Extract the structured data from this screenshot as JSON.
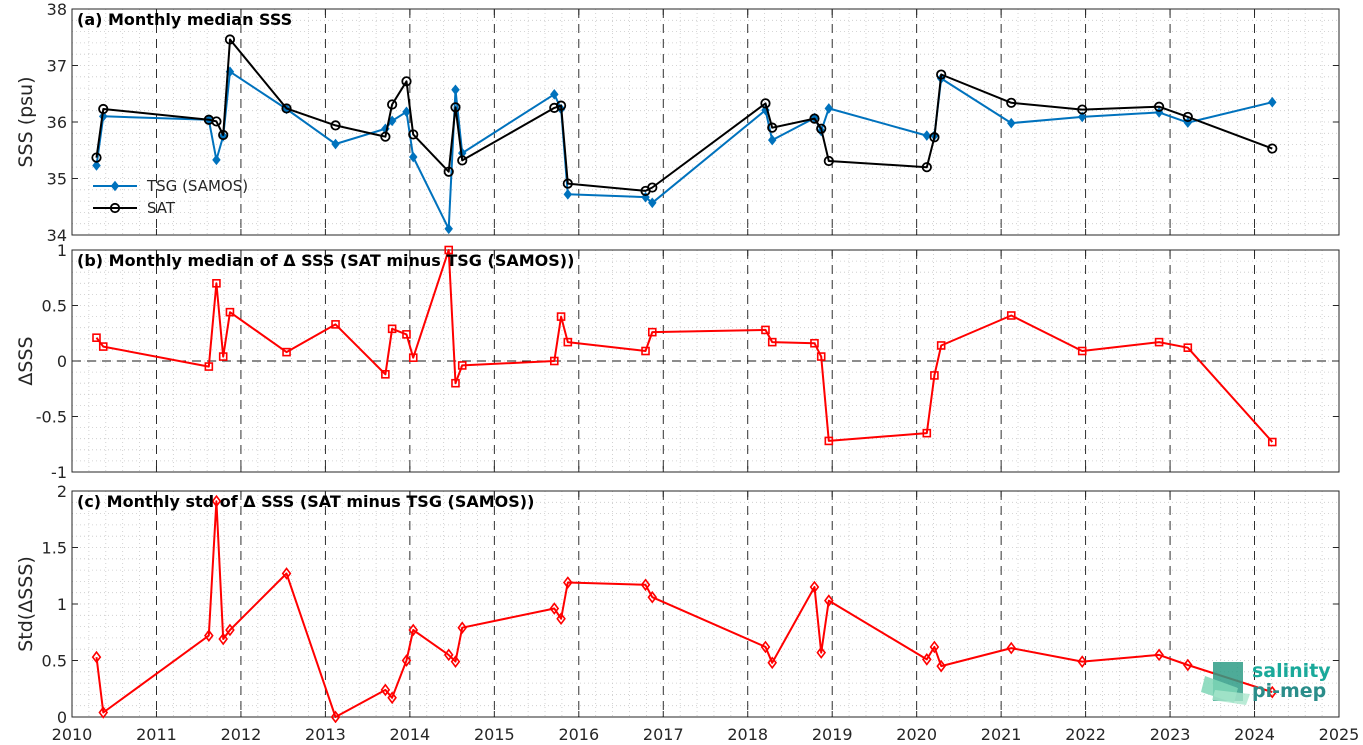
{
  "chart_data": [
    {
      "type": "line",
      "title": "(a) Monthly median SSS",
      "ylabel": "SSS (psu)",
      "ylim": [
        34,
        38
      ],
      "yticks": [
        34,
        35,
        36,
        37,
        38
      ],
      "xlim": [
        2010,
        2025
      ],
      "xticks": [
        2010,
        2011,
        2012,
        2013,
        2014,
        2015,
        2016,
        2017,
        2018,
        2019,
        2020,
        2021,
        2022,
        2023,
        2024,
        2025
      ],
      "grid": true,
      "legend_position": "bottom-left",
      "series": [
        {
          "name": "TSG (SAMOS)",
          "color": "#0072bd",
          "marker": "diamond",
          "x": [
            2010.29,
            2010.37,
            2011.62,
            2011.71,
            2011.79,
            2011.87,
            2012.54,
            2013.12,
            2013.71,
            2013.79,
            2013.96,
            2014.04,
            2014.46,
            2014.54,
            2014.62,
            2015.71,
            2015.79,
            2015.87,
            2016.79,
            2016.87,
            2018.21,
            2018.29,
            2018.79,
            2018.87,
            2018.96,
            2020.12,
            2020.21,
            2020.29,
            2021.12,
            2021.96,
            2022.87,
            2023.21,
            2024.21
          ],
          "y": [
            35.23,
            36.1,
            36.04,
            35.33,
            35.75,
            36.89,
            36.23,
            35.61,
            35.88,
            36.02,
            36.18,
            35.38,
            34.11,
            36.57,
            35.45,
            36.49,
            36.23,
            34.72,
            34.67,
            34.57,
            36.21,
            35.68,
            36.07,
            35.84,
            36.24,
            35.76,
            35.76,
            36.77,
            35.98,
            36.09,
            36.17,
            35.99,
            36.35
          ]
        },
        {
          "name": "SAT",
          "color": "#000000",
          "marker": "circle",
          "x": [
            2010.29,
            2010.37,
            2011.62,
            2011.71,
            2011.79,
            2011.87,
            2012.54,
            2013.12,
            2013.71,
            2013.79,
            2013.96,
            2014.04,
            2014.46,
            2014.54,
            2014.62,
            2015.71,
            2015.79,
            2015.87,
            2016.79,
            2016.87,
            2018.21,
            2018.29,
            2018.79,
            2018.87,
            2018.96,
            2020.12,
            2020.21,
            2020.29,
            2021.12,
            2021.96,
            2022.87,
            2023.21,
            2024.21
          ],
          "y": [
            35.37,
            36.23,
            36.04,
            36.01,
            35.77,
            37.46,
            36.24,
            35.94,
            35.74,
            36.31,
            36.72,
            35.78,
            35.12,
            36.26,
            35.32,
            36.25,
            36.29,
            34.91,
            34.78,
            34.84,
            36.33,
            35.9,
            36.06,
            35.88,
            35.31,
            35.2,
            35.73,
            36.84,
            36.34,
            36.22,
            36.27,
            36.09,
            35.53
          ]
        }
      ]
    },
    {
      "type": "line",
      "title": "(b) Monthly median of Δ SSS (SAT minus TSG (SAMOS))",
      "ylabel": "ΔSSS",
      "ylim": [
        -1,
        1
      ],
      "yticks": [
        -1,
        -0.5,
        0,
        0.5,
        1
      ],
      "ytick_labels": [
        "-1",
        "-0.5",
        "0",
        "0.5",
        "1"
      ],
      "xlim": [
        2010,
        2025
      ],
      "grid": true,
      "zero_line": true,
      "series": [
        {
          "color": "#ff0000",
          "marker": "square",
          "x": [
            2010.29,
            2010.37,
            2011.62,
            2011.71,
            2011.79,
            2011.87,
            2012.54,
            2013.12,
            2013.71,
            2013.79,
            2013.96,
            2014.04,
            2014.46,
            2014.54,
            2014.62,
            2015.71,
            2015.79,
            2015.87,
            2016.79,
            2016.87,
            2018.21,
            2018.29,
            2018.79,
            2018.87,
            2018.96,
            2020.12,
            2020.21,
            2020.29,
            2021.12,
            2021.96,
            2022.87,
            2023.21,
            2024.21
          ],
          "y": [
            0.21,
            0.13,
            -0.05,
            0.7,
            0.04,
            0.44,
            0.08,
            0.33,
            -0.12,
            0.29,
            0.24,
            0.03,
            1.0,
            -0.2,
            -0.04,
            0.0,
            0.4,
            0.17,
            0.09,
            0.26,
            0.28,
            0.17,
            0.16,
            0.04,
            -0.72,
            -0.65,
            -0.13,
            0.14,
            0.41,
            0.09,
            0.17,
            0.12,
            -0.73
          ]
        }
      ]
    },
    {
      "type": "line",
      "title": "(c) Monthly std of Δ SSS (SAT minus TSG (SAMOS))",
      "ylabel": "Std(ΔSSS)",
      "ylim": [
        0,
        2
      ],
      "yticks": [
        0,
        0.5,
        1,
        1.5,
        2
      ],
      "ytick_labels": [
        "0",
        "0.5",
        "1",
        "1.5",
        "2"
      ],
      "xlim": [
        2010,
        2025
      ],
      "grid": true,
      "series": [
        {
          "color": "#ff0000",
          "marker": "diamond",
          "x": [
            2010.29,
            2010.37,
            2011.62,
            2011.71,
            2011.79,
            2011.87,
            2012.54,
            2013.12,
            2013.71,
            2013.79,
            2013.96,
            2014.04,
            2014.46,
            2014.54,
            2014.62,
            2015.71,
            2015.79,
            2015.87,
            2016.79,
            2016.87,
            2018.21,
            2018.29,
            2018.79,
            2018.87,
            2018.96,
            2020.12,
            2020.21,
            2020.29,
            2021.12,
            2021.96,
            2022.87,
            2023.21,
            2024.21
          ],
          "y": [
            0.53,
            0.04,
            0.72,
            1.91,
            0.69,
            0.77,
            1.27,
            0.0,
            0.24,
            0.17,
            0.5,
            0.77,
            0.55,
            0.49,
            0.79,
            0.96,
            0.87,
            1.19,
            1.17,
            1.06,
            0.62,
            0.48,
            1.15,
            0.57,
            1.03,
            0.51,
            0.62,
            0.45,
            0.61,
            0.49,
            0.55,
            0.46,
            0.22
          ]
        }
      ]
    }
  ],
  "logo": {
    "line1": "salinity",
    "line2": "pi-mep"
  }
}
